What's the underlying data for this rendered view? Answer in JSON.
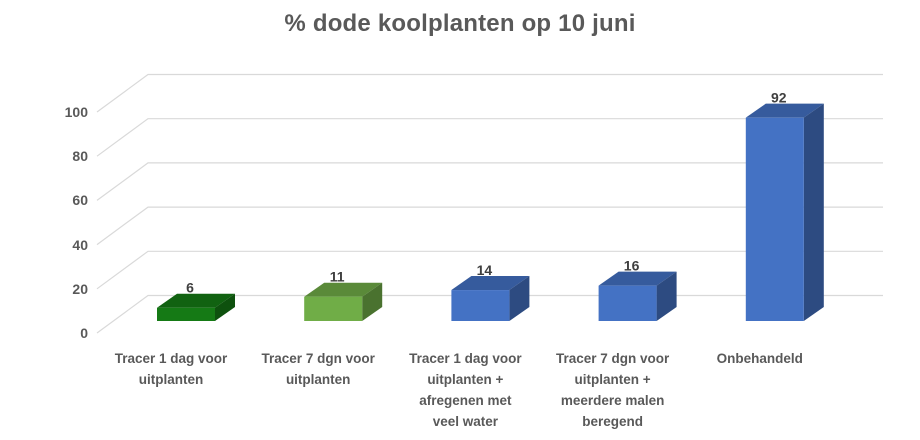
{
  "title": "% dode koolplanten op 10 juni",
  "chart_data": {
    "type": "bar",
    "style_3d": true,
    "title": "% dode koolplanten op 10 juni",
    "categories": [
      "Tracer 1 dag voor\nuitplanten",
      "Tracer 7 dgn voor\nuitplanten",
      "Tracer 1 dag voor\nuitplanten +\nafregenen met\nveel water",
      "Tracer 7 dgn voor\nuitplanten +\nmeerdere malen\nberegend",
      "Onbehandeld"
    ],
    "values": [
      6,
      11,
      14,
      16,
      92
    ],
    "value_labels": [
      "6",
      "11",
      "14",
      "16",
      "92"
    ],
    "bar_colors": [
      "#157A15",
      "#70AD47",
      "#4472C4",
      "#4472C4",
      "#4472C4"
    ],
    "xlabel": "",
    "ylabel": "",
    "ylim": [
      0,
      100
    ],
    "yticks": [
      0,
      20,
      40,
      60,
      80,
      100
    ],
    "grid": true,
    "legend": false,
    "colors": {
      "grid": "#D9D9D9",
      "axis_text": "#595959",
      "value_label": "#3F3F3F",
      "title_text": "#595959",
      "background": "#FFFFFF"
    }
  }
}
